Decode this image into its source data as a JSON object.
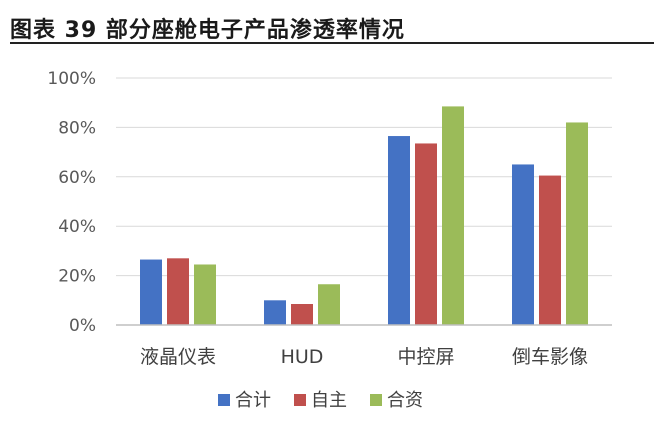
{
  "title": "图表 39 部分座舱电子产品渗透率情况",
  "watermark": "",
  "chart_data": {
    "type": "bar",
    "title": "",
    "xlabel": "",
    "ylabel": "",
    "ylim": [
      0,
      100
    ],
    "yticks": [
      "0%",
      "20%",
      "40%",
      "60%",
      "80%",
      "100%"
    ],
    "ytick_values": [
      0,
      20,
      40,
      60,
      80,
      100
    ],
    "categories": [
      "液晶仪表",
      "HUD",
      "中控屏",
      "倒车影像"
    ],
    "series": [
      {
        "name": "合计",
        "color": "#4472C4",
        "values": [
          26.5,
          10,
          76.5,
          65
        ]
      },
      {
        "name": "自主",
        "color": "#C0504D",
        "values": [
          27,
          8.5,
          73.5,
          60.5
        ]
      },
      {
        "name": "合资",
        "color": "#9BBB59",
        "values": [
          24.5,
          16.5,
          88.5,
          82
        ]
      }
    ],
    "grid": true,
    "legend": "bottom"
  }
}
